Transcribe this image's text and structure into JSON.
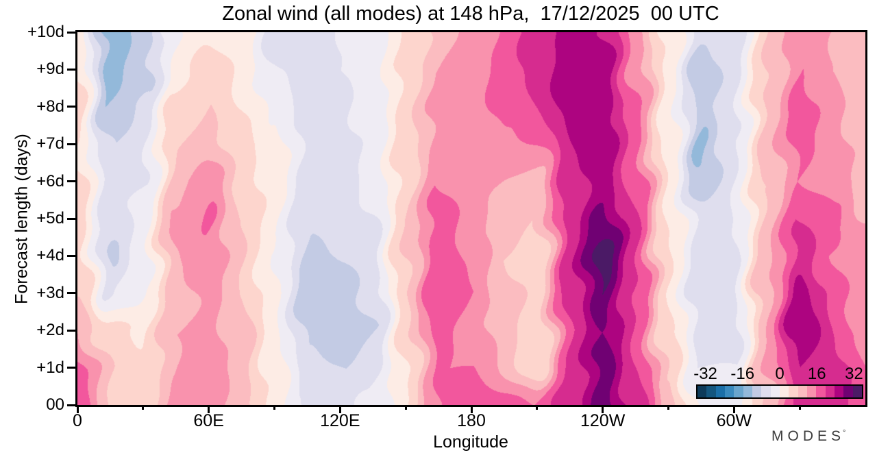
{
  "logo": {
    "text": "MODES",
    "mark": "°"
  },
  "chart_data": {
    "type": "heatmap",
    "title": "Zonal wind (all modes) at 148 hPa,  17/12/2025  00 UTC",
    "xlabel": "Longitude",
    "ylabel": "Forecast length (days)",
    "xlim": [
      0,
      360
    ],
    "ylim": [
      0,
      10
    ],
    "grid": false,
    "x_major_ticks": [
      {
        "lon": 0,
        "label": "0"
      },
      {
        "lon": 60,
        "label": "60E"
      },
      {
        "lon": 120,
        "label": "120E"
      },
      {
        "lon": 180,
        "label": "180"
      },
      {
        "lon": 240,
        "label": "120W"
      },
      {
        "lon": 300,
        "label": "60W"
      }
    ],
    "x_minor_tick_step_deg": 30,
    "y_ticks": [
      {
        "day": 0,
        "label": "00"
      },
      {
        "day": 1,
        "label": "+1d"
      },
      {
        "day": 2,
        "label": "+2d"
      },
      {
        "day": 3,
        "label": "+3d"
      },
      {
        "day": 4,
        "label": "+4d"
      },
      {
        "day": 5,
        "label": "+5d"
      },
      {
        "day": 6,
        "label": "+6d"
      },
      {
        "day": 7,
        "label": "+7d"
      },
      {
        "day": 8,
        "label": "+8d"
      },
      {
        "day": 9,
        "label": "+9d"
      },
      {
        "day": 10,
        "label": "+10d"
      }
    ],
    "levels": {
      "min": -36,
      "max": 36,
      "step": 4
    },
    "colors": [
      "#0d3a5a",
      "#14567f",
      "#1b6fa8",
      "#3a8abe",
      "#69a5cd",
      "#93b9da",
      "#c3cbe4",
      "#dfdeee",
      "#efecf4",
      "#fdece5",
      "#fdd5cd",
      "#fbbcc0",
      "#f992ad",
      "#f2579d",
      "#d62c8f",
      "#ad0480",
      "#700173",
      "#4b1a66"
    ],
    "colorbar": {
      "tick_values": [
        -32,
        -16,
        0,
        16,
        32
      ],
      "tick_labels": [
        "-32",
        "-16",
        "0",
        "16",
        "32"
      ],
      "position": "inside-bottom-right"
    },
    "x_lon_deg": [
      0,
      15,
      30,
      45,
      60,
      75,
      90,
      105,
      120,
      135,
      150,
      165,
      180,
      195,
      210,
      225,
      240,
      255,
      270,
      285,
      300,
      315,
      330,
      345,
      360
    ],
    "y_forecast_day": [
      0,
      1,
      2,
      3,
      4,
      5,
      6,
      7,
      8,
      9,
      10
    ],
    "values": [
      [
        18,
        8,
        6,
        13,
        15,
        10,
        2,
        -4,
        -5,
        -3,
        4,
        16,
        18,
        19,
        16,
        22,
        31,
        22,
        10,
        -2,
        -3,
        10,
        20,
        23,
        18
      ],
      [
        17,
        8,
        5,
        12,
        14,
        10,
        2,
        -7,
        -8,
        -7,
        4,
        16,
        16,
        12,
        4,
        20,
        30,
        20,
        7,
        -4,
        -4,
        12,
        24,
        22,
        16
      ],
      [
        12,
        5,
        3,
        12,
        13,
        10,
        1,
        -9,
        -10,
        -8,
        6,
        18,
        14,
        10,
        4,
        20,
        28,
        19,
        5,
        -6,
        -5,
        12,
        28,
        20,
        14
      ],
      [
        8,
        -5,
        0,
        10,
        13,
        8,
        0,
        -10,
        -10,
        -7,
        8,
        20,
        16,
        10,
        6,
        22,
        32,
        20,
        4,
        -7,
        -5,
        12,
        26,
        18,
        12
      ],
      [
        7,
        -9,
        -2,
        12,
        15,
        8,
        0,
        -9,
        -8,
        -5,
        8,
        20,
        15,
        8,
        6,
        22,
        34,
        21,
        4,
        -6,
        -4,
        11,
        22,
        16,
        12
      ],
      [
        6,
        -6,
        -2,
        13,
        17,
        8,
        1,
        -7,
        -6,
        -4,
        8,
        18,
        14,
        10,
        8,
        22,
        30,
        20,
        4,
        -6,
        -4,
        10,
        20,
        18,
        12
      ],
      [
        5,
        -7,
        -4,
        10,
        14,
        7,
        2,
        -6,
        -5,
        -3,
        6,
        16,
        14,
        12,
        10,
        22,
        26,
        18,
        3,
        -11,
        -4,
        8,
        16,
        14,
        10
      ],
      [
        4,
        -8,
        -5,
        8,
        10,
        5,
        2,
        -5,
        -5,
        -3,
        6,
        14,
        14,
        14,
        16,
        24,
        26,
        17,
        2,
        -14,
        -4,
        10,
        17,
        14,
        10
      ],
      [
        5,
        -12,
        -7,
        6,
        8,
        4,
        -2,
        -5,
        -5,
        -2,
        6,
        13,
        14,
        17,
        20,
        26,
        28,
        16,
        2,
        -9,
        -5,
        9,
        18,
        13,
        9
      ],
      [
        4,
        -16,
        -9,
        2,
        6,
        3,
        -4,
        -6,
        -4,
        -3,
        5,
        12,
        14,
        18,
        22,
        27,
        26,
        15,
        2,
        -11,
        -5,
        8,
        16,
        12,
        9
      ],
      [
        4,
        -13,
        -11,
        0,
        3,
        2,
        -6,
        -6,
        -4,
        -3,
        4,
        10,
        13,
        17,
        22,
        26,
        24,
        14,
        3,
        -7,
        -5,
        8,
        14,
        12,
        8
      ]
    ]
  }
}
